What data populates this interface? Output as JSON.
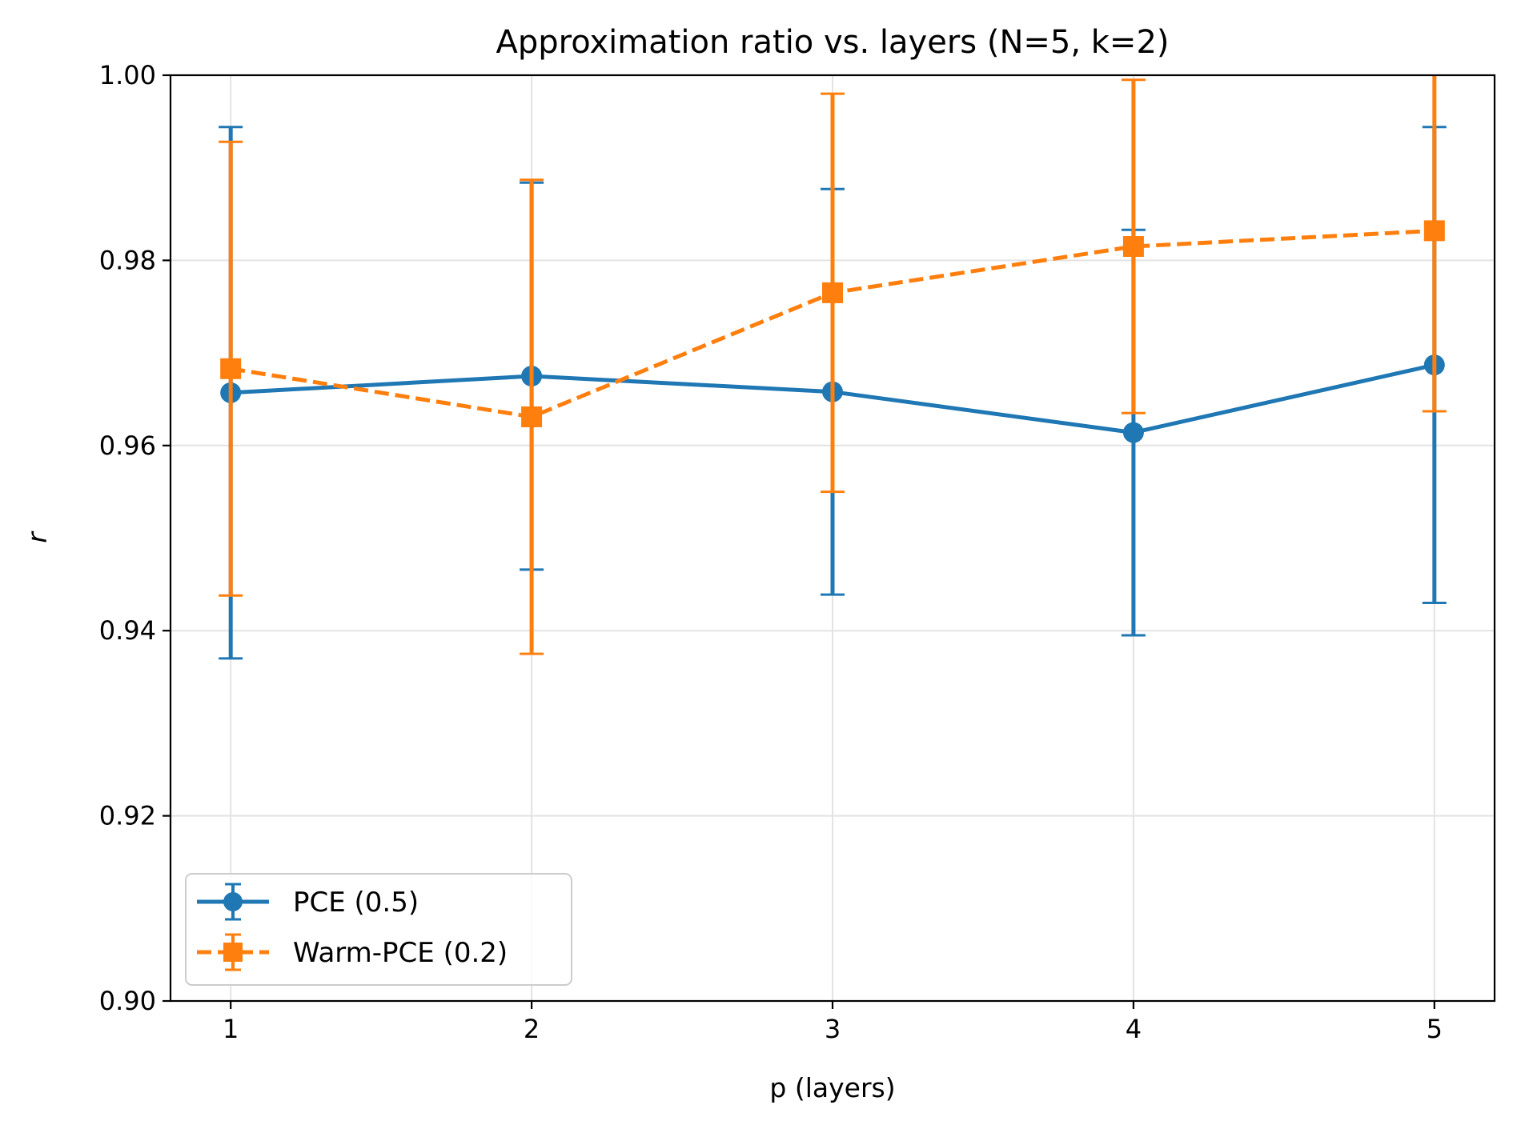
{
  "chart_data": {
    "type": "line",
    "title": "Approximation ratio vs. layers (N=5, k=2)",
    "xlabel": "p (layers)",
    "ylabel": "r",
    "x": [
      1,
      2,
      3,
      4,
      5
    ],
    "xlim": [
      0.8,
      5.2
    ],
    "ylim": [
      0.9,
      1.0
    ],
    "yticks": [
      0.9,
      0.92,
      0.94,
      0.96,
      0.98,
      1.0
    ],
    "ytick_labels": [
      "0.90",
      "0.92",
      "0.94",
      "0.96",
      "0.98",
      "1.00"
    ],
    "xticks": [
      1,
      2,
      3,
      4,
      5
    ],
    "xtick_labels": [
      "1",
      "2",
      "3",
      "4",
      "5"
    ],
    "grid": true,
    "legend_position": "lower-left",
    "series": [
      {
        "name": "PCE (0.5)",
        "color": "#1f77b4",
        "marker": "circle",
        "linestyle": "solid",
        "values": [
          0.9657,
          0.9675,
          0.9658,
          0.9614,
          0.9687
        ],
        "errors": [
          0.0287,
          0.0209,
          0.0219,
          0.0219,
          0.0257
        ]
      },
      {
        "name": "Warm-PCE (0.2)",
        "color": "#ff7f0e",
        "marker": "square",
        "linestyle": "dashed",
        "values": [
          0.9683,
          0.9631,
          0.9765,
          0.9815,
          0.9832
        ],
        "errors": [
          0.0245,
          0.0256,
          0.0215,
          0.018,
          0.0195
        ]
      }
    ]
  }
}
